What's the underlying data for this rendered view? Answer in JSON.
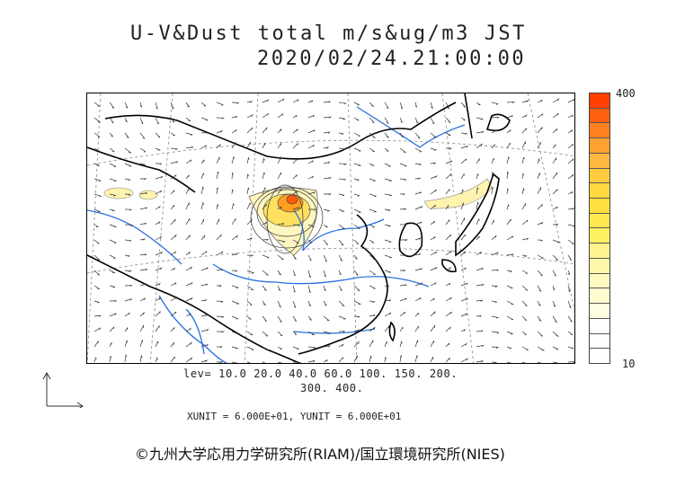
{
  "header": {
    "title": "U-V&Dust total m/s&ug/m3 JST",
    "datetime": "2020/02/24.21:00:00"
  },
  "colorbar": {
    "max_label": "400",
    "min_label": "10",
    "colors": [
      "#ff4000",
      "#ff6010",
      "#ff8020",
      "#ffa030",
      "#ffb840",
      "#ffcc40",
      "#ffd840",
      "#ffe040",
      "#ffe850",
      "#fff060",
      "#fff490",
      "#fff8a8",
      "#fffac0",
      "#fffcd0",
      "#fffde0",
      "#ffffff",
      "#ffffff",
      "#ffffff"
    ]
  },
  "contour_levels": {
    "line1": "lev= 10.0 20.0 40.0 60.0 100. 150. 200.",
    "line2": "300. 400."
  },
  "units": {
    "text": "XUNIT = 6.000E+01, YUNIT = 6.000E+01"
  },
  "credit": {
    "text": "©九州大学応用力学研究所(RIAM)/国立環境研究所(NIES)"
  },
  "map_colors": {
    "coast": "#000000",
    "rivers": "#2a6fe0",
    "dust_low": "#fff8c0",
    "dust_high": "#ff5a10"
  }
}
